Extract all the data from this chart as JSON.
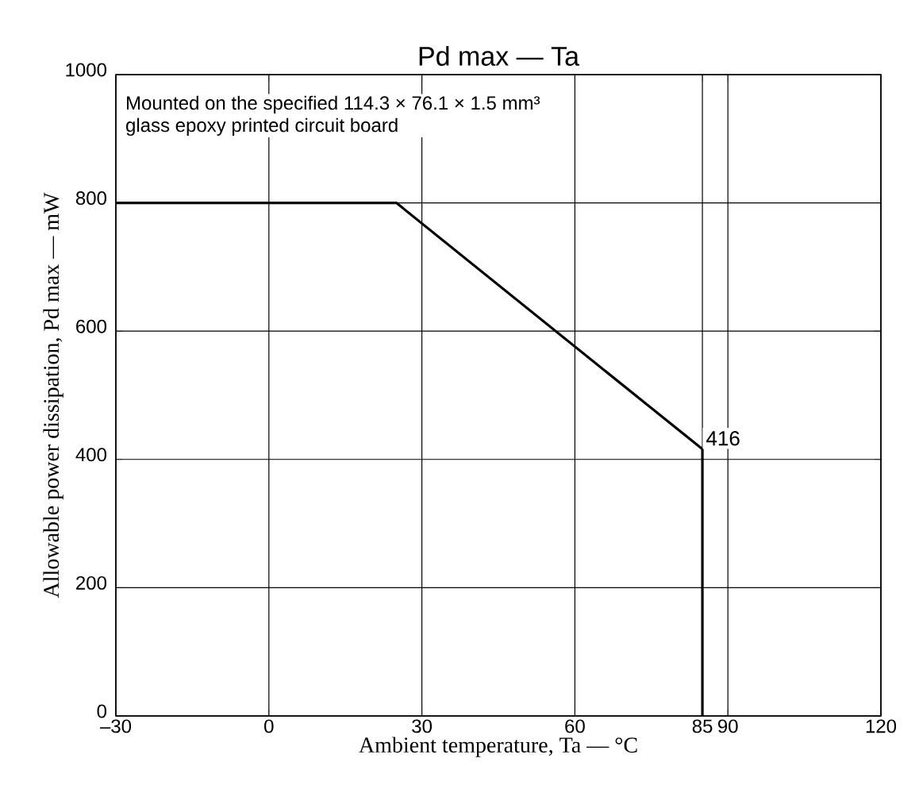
{
  "chart_data": {
    "type": "line",
    "title": "Pd max — Ta",
    "xlabel": "Ambient temperature, Ta — °C",
    "ylabel": "Allowable power dissipation, Pd max — mW",
    "x": [
      -30,
      25,
      85,
      85
    ],
    "series": [
      {
        "color": "#000000",
        "values": [
          800,
          800,
          416,
          0
        ],
        "value_labels": [
          null,
          null,
          "416",
          null
        ]
      }
    ],
    "xlim": [
      -30,
      120
    ],
    "xticks": [
      {
        "value": -30,
        "label": "–30"
      },
      0,
      30,
      60,
      85,
      90,
      120
    ],
    "ylim": [
      0,
      1000
    ],
    "yticks": [
      0,
      200,
      400,
      600,
      800,
      1000
    ],
    "grid": true,
    "marker": "none",
    "line_style": "solid",
    "annotations": [
      "Mounted on the specified 114.3 × 76.1 × 1.5 mm³",
      "glass epoxy printed circuit board"
    ]
  }
}
